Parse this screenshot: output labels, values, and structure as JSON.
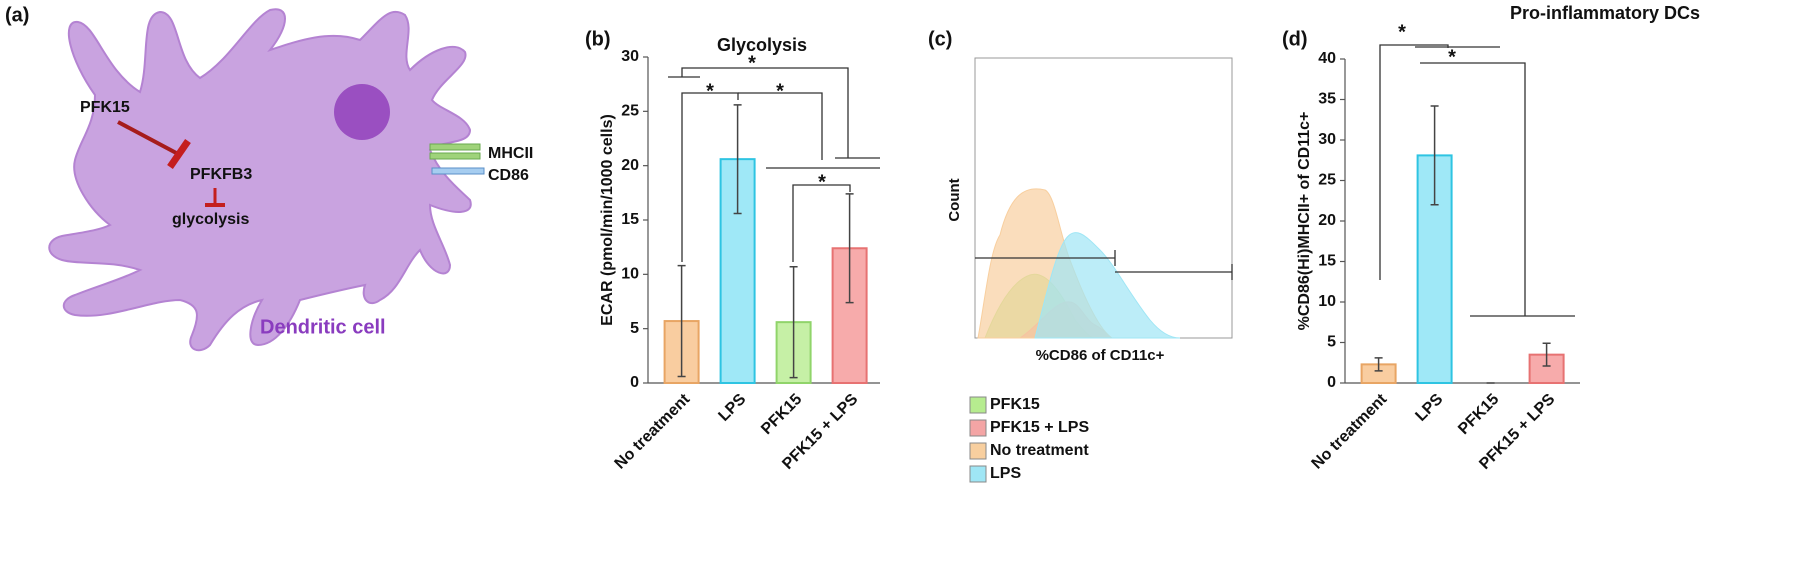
{
  "panel_labels": [
    "(a)",
    "(b)",
    "(c)",
    "(d)"
  ],
  "diagram": {
    "inhibitor": "PFK15",
    "target": "PFKFB3",
    "process": "glycolysis",
    "marker_1": "MHCII",
    "marker_2": "CD86",
    "cell": "Dendritic cell"
  },
  "chart_data": [
    {
      "type": "bar",
      "title": "Glycolysis",
      "ylabel": "ECAR (pmol/min/1000 cells)",
      "categories": [
        "No treatment",
        "LPS",
        "PFK15",
        "PFK15 + LPS"
      ],
      "values": [
        5.7,
        20.6,
        5.6,
        12.4
      ],
      "errors": [
        5.1,
        5.0,
        5.1,
        5.0
      ],
      "colors": [
        "#f9cda0",
        "#9fe8f7",
        "#c6f0a6",
        "#f7abab"
      ],
      "edge_colors": [
        "#e8a564",
        "#2ec4e2",
        "#90d46a",
        "#e77272"
      ],
      "ylim": [
        0,
        30
      ],
      "yticks": [
        0,
        5,
        10,
        15,
        20,
        25,
        30
      ],
      "annotations": [
        "*",
        "*",
        "*",
        "*"
      ]
    },
    {
      "type": "overlay",
      "ylabel": "Count",
      "xlabel": "%CD86 of CD11c+",
      "series": [
        {
          "name": "PFK15",
          "color": "#b6ec8f"
        },
        {
          "name": "PFK15 + LPS",
          "color": "#f4a5a5"
        },
        {
          "name": "No treatment",
          "color": "#f8cf9f"
        },
        {
          "name": "LPS",
          "color": "#9fe6f5"
        }
      ]
    },
    {
      "type": "bar",
      "title": "Pro-inflammatory DCs",
      "ylabel": "%CD86(Hi)MHCII+ of CD11c+",
      "categories": [
        "No treatment",
        "LPS",
        "PFK15",
        "PFK15 + LPS"
      ],
      "values": [
        2.3,
        28.1,
        0,
        3.5
      ],
      "errors": [
        0.8,
        6.1,
        0,
        1.4
      ],
      "colors": [
        "#f9cda0",
        "#9fe8f7",
        "#c6f0a6",
        "#f7abab"
      ],
      "edge_colors": [
        "#e8a564",
        "#2ec4e2",
        "#90d46a",
        "#e77272"
      ],
      "ylim": [
        0,
        40
      ],
      "yticks": [
        0,
        5,
        10,
        15,
        20,
        25,
        30,
        35,
        40
      ],
      "annotations": [
        "*",
        "*"
      ]
    }
  ]
}
